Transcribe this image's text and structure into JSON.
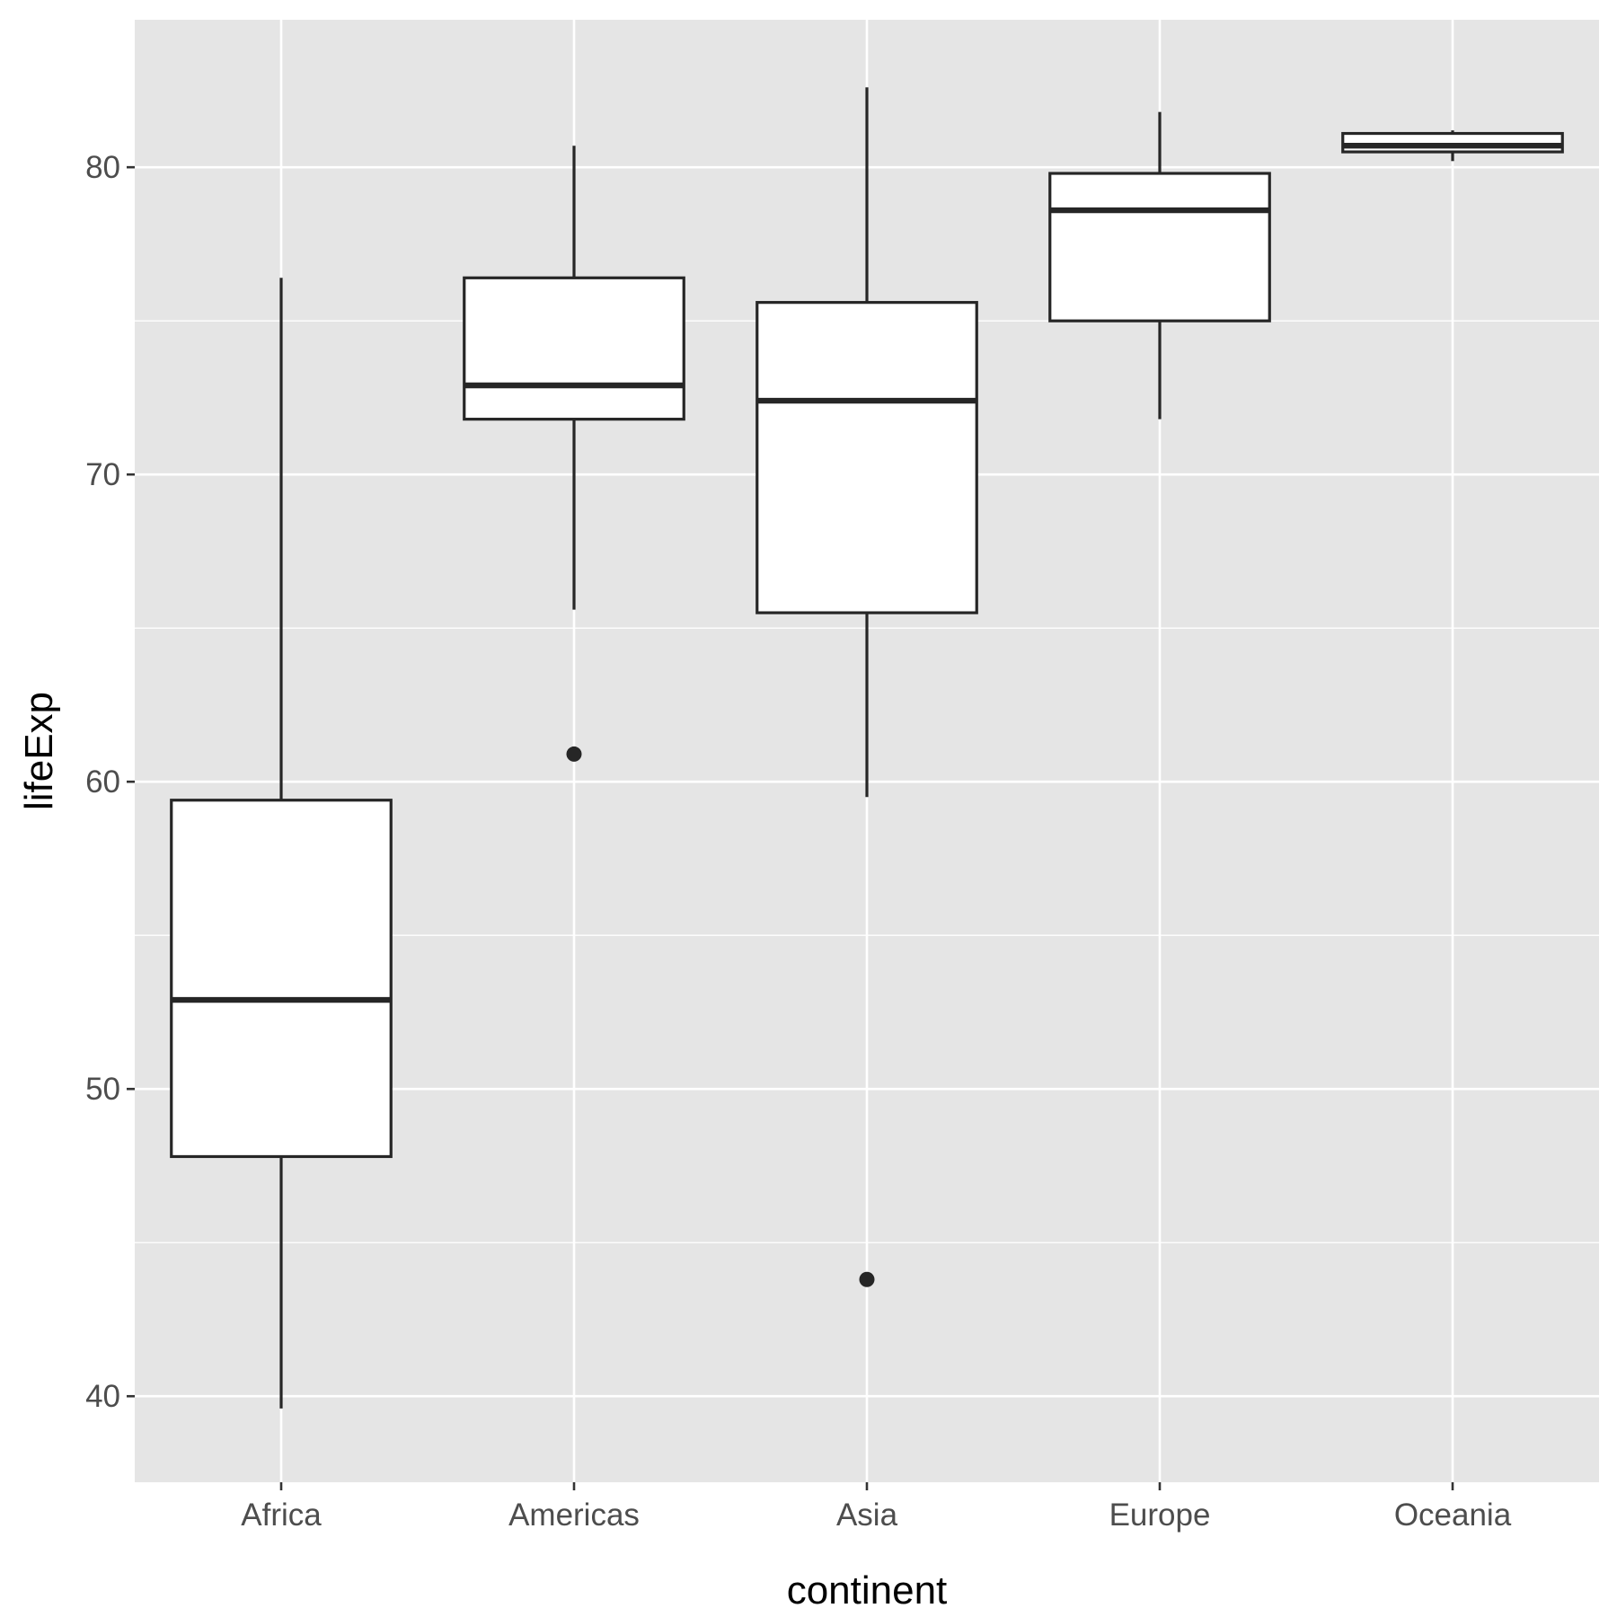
{
  "chart_data": {
    "type": "boxplot",
    "title": "",
    "xlabel": "continent",
    "ylabel": "lifeExp",
    "ylim": [
      37.2,
      84.8
    ],
    "y_major_ticks": [
      40,
      50,
      60,
      70,
      80
    ],
    "y_minor_ticks": [
      45,
      55,
      65,
      75
    ],
    "y_tick_labels": [
      "40",
      "50",
      "60",
      "70",
      "80"
    ],
    "grid": true,
    "categories": [
      "Africa",
      "Americas",
      "Asia",
      "Europe",
      "Oceania"
    ],
    "boxes": [
      {
        "category": "Africa",
        "whisker_low": 39.6,
        "q1": 47.8,
        "median": 52.9,
        "q3": 59.4,
        "whisker_high": 76.4,
        "outliers": []
      },
      {
        "category": "Americas",
        "whisker_low": 65.6,
        "q1": 71.8,
        "median": 72.9,
        "q3": 76.4,
        "whisker_high": 80.7,
        "outliers": [
          60.9
        ]
      },
      {
        "category": "Asia",
        "whisker_low": 59.5,
        "q1": 65.5,
        "median": 72.4,
        "q3": 75.6,
        "whisker_high": 82.6,
        "outliers": [
          43.8
        ]
      },
      {
        "category": "Europe",
        "whisker_low": 71.8,
        "q1": 75.0,
        "median": 78.6,
        "q3": 79.8,
        "whisker_high": 81.8,
        "outliers": []
      },
      {
        "category": "Oceania",
        "whisker_low": 80.2,
        "q1": 80.5,
        "median": 80.7,
        "q3": 81.1,
        "whisker_high": 81.2,
        "outliers": []
      }
    ]
  }
}
